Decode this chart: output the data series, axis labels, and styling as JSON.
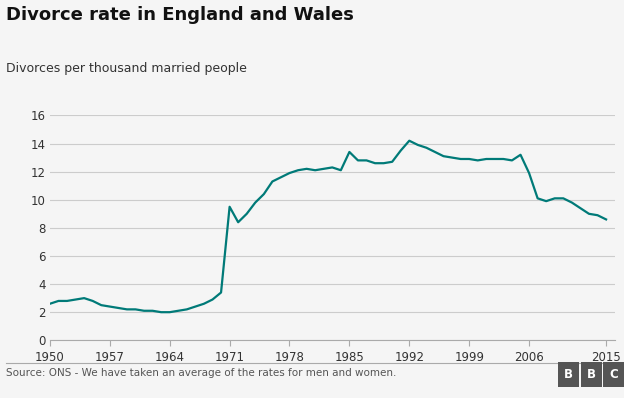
{
  "title": "Divorce rate in England and Wales",
  "subtitle": "Divorces per thousand married people",
  "source": "Source: ONS - We have taken an average of the rates for men and women.",
  "bbc_logo": "BBC",
  "line_color": "#007A78",
  "background_color": "#f5f5f5",
  "grid_color": "#cccccc",
  "xlim": [
    1950,
    2016
  ],
  "ylim": [
    0,
    16
  ],
  "yticks": [
    0,
    2,
    4,
    6,
    8,
    10,
    12,
    14,
    16
  ],
  "xticks": [
    1950,
    1957,
    1964,
    1971,
    1978,
    1985,
    1992,
    1999,
    2006,
    2015
  ],
  "years": [
    1950,
    1951,
    1952,
    1953,
    1954,
    1955,
    1956,
    1957,
    1958,
    1959,
    1960,
    1961,
    1962,
    1963,
    1964,
    1965,
    1966,
    1967,
    1968,
    1969,
    1970,
    1971,
    1972,
    1973,
    1974,
    1975,
    1976,
    1977,
    1978,
    1979,
    1980,
    1981,
    1982,
    1983,
    1984,
    1985,
    1986,
    1987,
    1988,
    1989,
    1990,
    1991,
    1992,
    1993,
    1994,
    1995,
    1996,
    1997,
    1998,
    1999,
    2000,
    2001,
    2002,
    2003,
    2004,
    2005,
    2006,
    2007,
    2008,
    2009,
    2010,
    2011,
    2012,
    2013,
    2014,
    2015
  ],
  "values": [
    2.6,
    2.8,
    2.8,
    2.9,
    3.0,
    2.8,
    2.5,
    2.4,
    2.3,
    2.2,
    2.2,
    2.1,
    2.1,
    2.0,
    2.0,
    2.1,
    2.2,
    2.4,
    2.6,
    2.9,
    3.4,
    9.5,
    8.4,
    9.0,
    9.8,
    10.4,
    11.3,
    11.6,
    11.9,
    12.1,
    12.2,
    12.1,
    12.2,
    12.3,
    12.1,
    13.4,
    12.8,
    12.8,
    12.6,
    12.6,
    12.7,
    13.5,
    14.2,
    13.9,
    13.7,
    13.4,
    13.1,
    13.0,
    12.9,
    12.9,
    12.8,
    12.9,
    12.9,
    12.9,
    12.8,
    13.2,
    11.9,
    10.1,
    9.9,
    10.1,
    10.1,
    9.8,
    9.4,
    9.0,
    8.9,
    8.6
  ]
}
